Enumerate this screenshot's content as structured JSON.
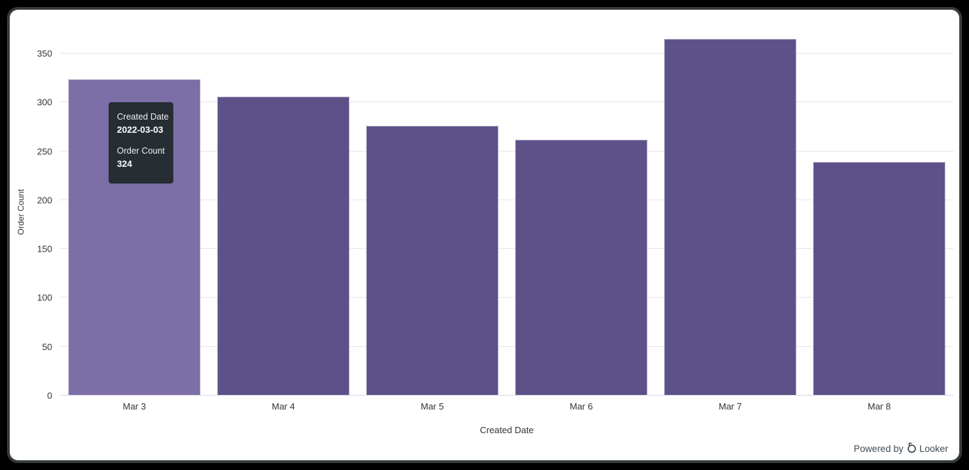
{
  "window": {
    "background": "#000000",
    "panel_border": "#363b3d",
    "panel_background": "#ffffff"
  },
  "chart_data": {
    "type": "bar",
    "categories": [
      "Mar 3",
      "Mar 4",
      "Mar 5",
      "Mar 6",
      "Mar 7",
      "Mar 8"
    ],
    "values": [
      324,
      306,
      276,
      262,
      365,
      239
    ],
    "title": "",
    "xlabel": "Created Date",
    "ylabel": "Order Count",
    "ylim": [
      0,
      375
    ],
    "yticks": [
      0,
      50,
      100,
      150,
      200,
      250,
      300,
      350
    ],
    "grid": true,
    "legend": "none",
    "bar_color": "#5e5189",
    "bar_color_hover": "#7c6ea6",
    "hovered_index": 0,
    "gridline_color": "#e6e6e6",
    "axis_line_color": "#d9d4e4",
    "tick_label_color": "#333333"
  },
  "tooltip": {
    "visible": true,
    "label1": "Created Date",
    "value1": "2022-03-03",
    "label2": "Order Count",
    "value2": "324",
    "background": "#262d33",
    "text_color": "#ffffff"
  },
  "footer": {
    "powered_by_label": "Powered by",
    "brand_label": "Looker",
    "color": "#3e4a52"
  }
}
